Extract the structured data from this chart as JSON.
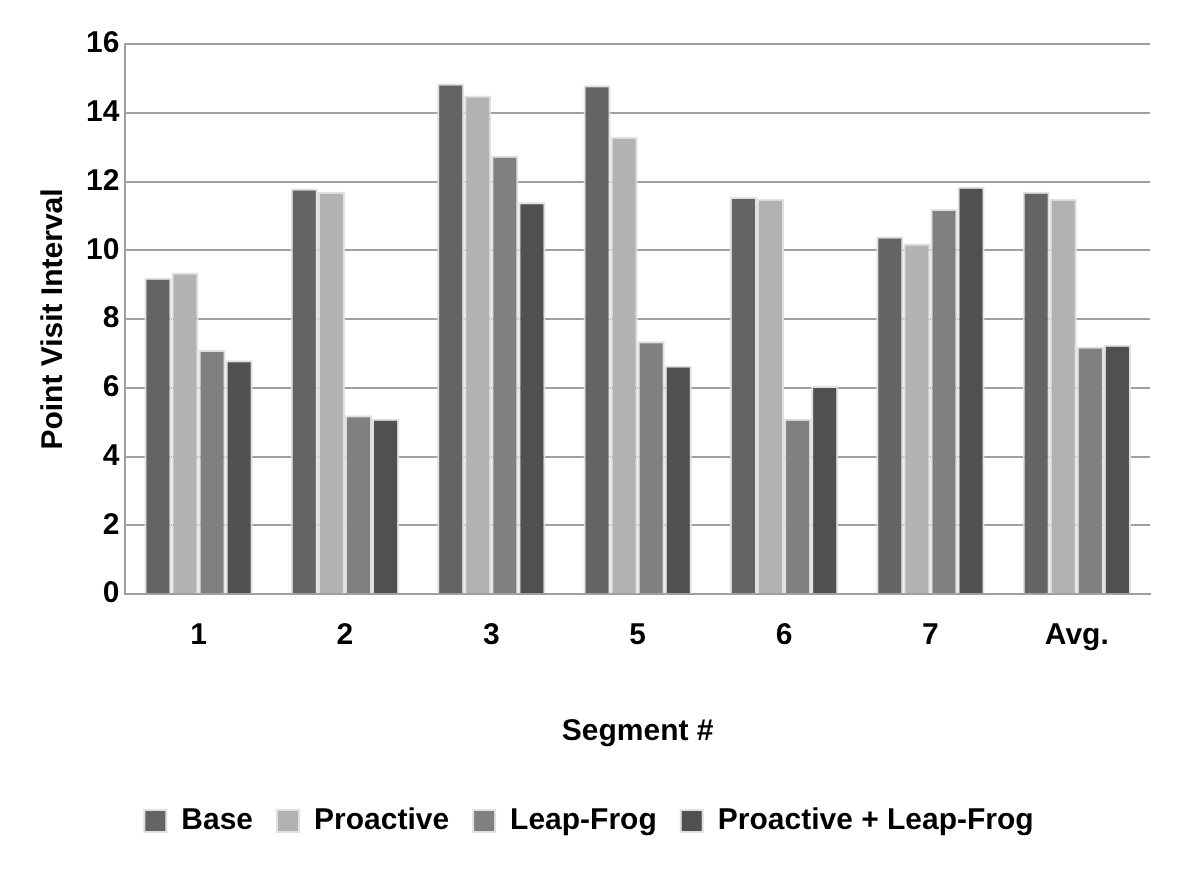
{
  "chart_data": {
    "type": "bar",
    "xlabel": "Segment #",
    "ylabel": "Point Visit Interval",
    "categories": [
      "1",
      "2",
      "3",
      "5",
      "6",
      "7",
      "Avg."
    ],
    "series": [
      {
        "name": "Base",
        "color": "#646464",
        "values": [
          9.2,
          11.8,
          14.85,
          14.8,
          11.55,
          10.4,
          11.7
        ]
      },
      {
        "name": "Proactive",
        "color": "#b2b2b2",
        "values": [
          9.35,
          11.7,
          14.5,
          13.3,
          11.5,
          10.2,
          11.5
        ]
      },
      {
        "name": "Leap-Frog",
        "color": "#808080",
        "values": [
          7.1,
          5.2,
          12.75,
          7.35,
          5.1,
          11.2,
          7.2
        ]
      },
      {
        "name": "Proactive + Leap-Frog",
        "color": "#505050",
        "values": [
          6.8,
          5.1,
          11.4,
          6.65,
          6.05,
          11.85,
          7.25
        ]
      }
    ],
    "ylim": [
      0,
      16
    ],
    "yticks": [
      0,
      2,
      4,
      6,
      8,
      10,
      12,
      14,
      16
    ],
    "grid": "y",
    "legend": "bottom"
  }
}
